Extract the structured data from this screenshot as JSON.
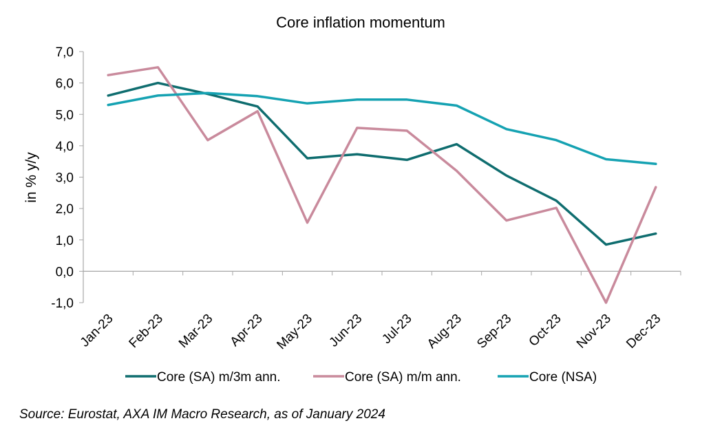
{
  "chart_data": {
    "type": "line",
    "title": "Core inflation momentum",
    "ylabel": "in % y/y",
    "xlabel": "",
    "ylim": [
      -1.0,
      7.0
    ],
    "ytick_step": 1.0,
    "ytick_labels": [
      "-1,0",
      "0,0",
      "1,0",
      "2,0",
      "3,0",
      "4,0",
      "5,0",
      "6,0",
      "7,0"
    ],
    "categories": [
      "Jan-23",
      "Feb-23",
      "Mar-23",
      "Apr-23",
      "May-23",
      "Jun-23",
      "Jul-23",
      "Aug-23",
      "Sep-23",
      "Oct-23",
      "Nov-23",
      "Dec-23"
    ],
    "series": [
      {
        "name": "Core (SA) m/3m ann.",
        "color": "#0f6d6f",
        "values": [
          5.6,
          6.0,
          5.65,
          5.25,
          3.6,
          3.73,
          3.55,
          4.05,
          3.05,
          2.25,
          0.85,
          1.2
        ]
      },
      {
        "name": "Core (SA) m/m ann.",
        "color": "#c98a9c",
        "values": [
          6.25,
          6.5,
          4.18,
          5.1,
          1.55,
          4.57,
          4.48,
          3.2,
          1.62,
          2.02,
          -1.0,
          2.68
        ]
      },
      {
        "name": "Core (NSA)",
        "color": "#15a2b2",
        "values": [
          5.3,
          5.6,
          5.68,
          5.58,
          5.35,
          5.47,
          5.47,
          5.28,
          4.53,
          4.18,
          3.57,
          3.42
        ]
      }
    ],
    "legend_position": "bottom",
    "grid": false
  },
  "source_note": "Source: Eurostat, AXA IM Macro Research, as of January 2024"
}
